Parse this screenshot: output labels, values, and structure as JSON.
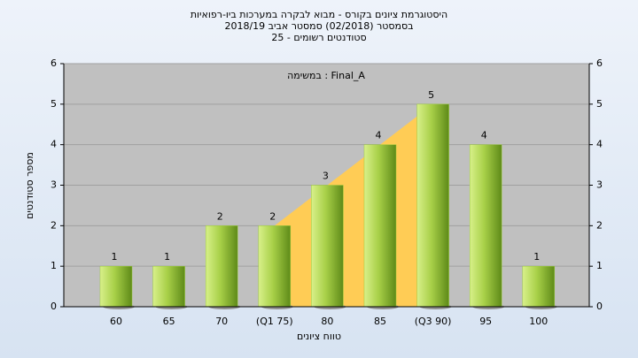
{
  "chart_data": {
    "type": "bar",
    "title": "היסטוגרמת ציונים בקורס - מבוא לבקרה במערכות ביו-רפואיות",
    "subtitle": "בסמסטר  (02/2018)  סמסטר אביב 2018/19",
    "subtitle2": "סטודנטים רשומים - 25",
    "annotation": "במשימה : Final_A",
    "y_label": "מספר סטודנטים",
    "x_label": "טווח ציונים",
    "categories": [
      "60",
      "65",
      "70",
      "(Q1 75)",
      "80",
      "85",
      "(Q3 90)",
      "95",
      "100"
    ],
    "values": [
      1,
      1,
      2,
      2,
      3,
      4,
      5,
      4,
      1
    ],
    "color": "#9ccc3c",
    "band_color": "#ffcc55",
    "ylim": [
      0,
      6
    ],
    "yticks": [
      0,
      1,
      2,
      3,
      4,
      5,
      6
    ],
    "y2lim": [
      0,
      6
    ],
    "y2ticks": [
      0,
      1,
      2,
      3,
      4,
      5,
      6
    ],
    "grid": true
  }
}
